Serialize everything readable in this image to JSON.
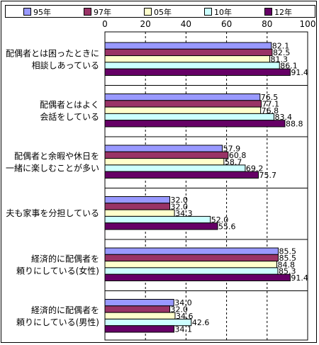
{
  "chart_data": {
    "type": "bar",
    "orientation": "horizontal",
    "series": [
      {
        "name": "95年",
        "color": "#9999FF",
        "values": [
          82.1,
          76.5,
          57.9,
          32.0,
          85.5,
          34.0
        ]
      },
      {
        "name": "97年",
        "color": "#993366",
        "values": [
          82.5,
          77.1,
          60.8,
          32.0,
          85.5,
          32.0
        ]
      },
      {
        "name": "05年",
        "color": "#FFFFCC",
        "values": [
          81.3,
          76.8,
          58.7,
          34.3,
          84.8,
          34.6
        ]
      },
      {
        "name": "10年",
        "color": "#CCFFFF",
        "values": [
          86.1,
          83.4,
          69.2,
          52.0,
          85.3,
          42.6
        ]
      },
      {
        "name": "12年",
        "color": "#660066",
        "values": [
          91.4,
          88.8,
          75.7,
          55.6,
          91.4,
          34.1
        ]
      }
    ],
    "value_labels": [
      [
        "82.1",
        "82.5",
        "81.3",
        "86.1",
        "91.4"
      ],
      [
        "76.5",
        "77.1",
        "76.8",
        "83.4",
        "88.8"
      ],
      [
        "57.9",
        "60.8",
        "58.7",
        "69.2",
        "75.7"
      ],
      [
        "32.0",
        "32.0",
        "34.3",
        "52.0",
        "55.6"
      ],
      [
        "85.5",
        "85.5",
        "84.8",
        "85.3",
        "91.4"
      ],
      [
        "34.0",
        "32.0",
        "34.6",
        "42.6",
        "34.1"
      ]
    ],
    "categories": [
      [
        "配偶者とは困ったときに",
        "相談しあっている"
      ],
      [
        "配偶者とはよく",
        "会話をしている"
      ],
      [
        "配偶者と余暇や休日を",
        "一緒に楽しむことが多い"
      ],
      [
        "夫も家事を分担している"
      ],
      [
        "経済的に配偶者を",
        "頼りにしている(女性)"
      ],
      [
        "経済的に配偶者を",
        "頼りにしている(男性)"
      ]
    ],
    "xlim": [
      0,
      100
    ],
    "ticks": [
      "0",
      "20",
      "40",
      "60",
      "80",
      "100"
    ],
    "tick_values": [
      0,
      20,
      40,
      60,
      80,
      100
    ],
    "grid": true,
    "legend_position": "top"
  }
}
